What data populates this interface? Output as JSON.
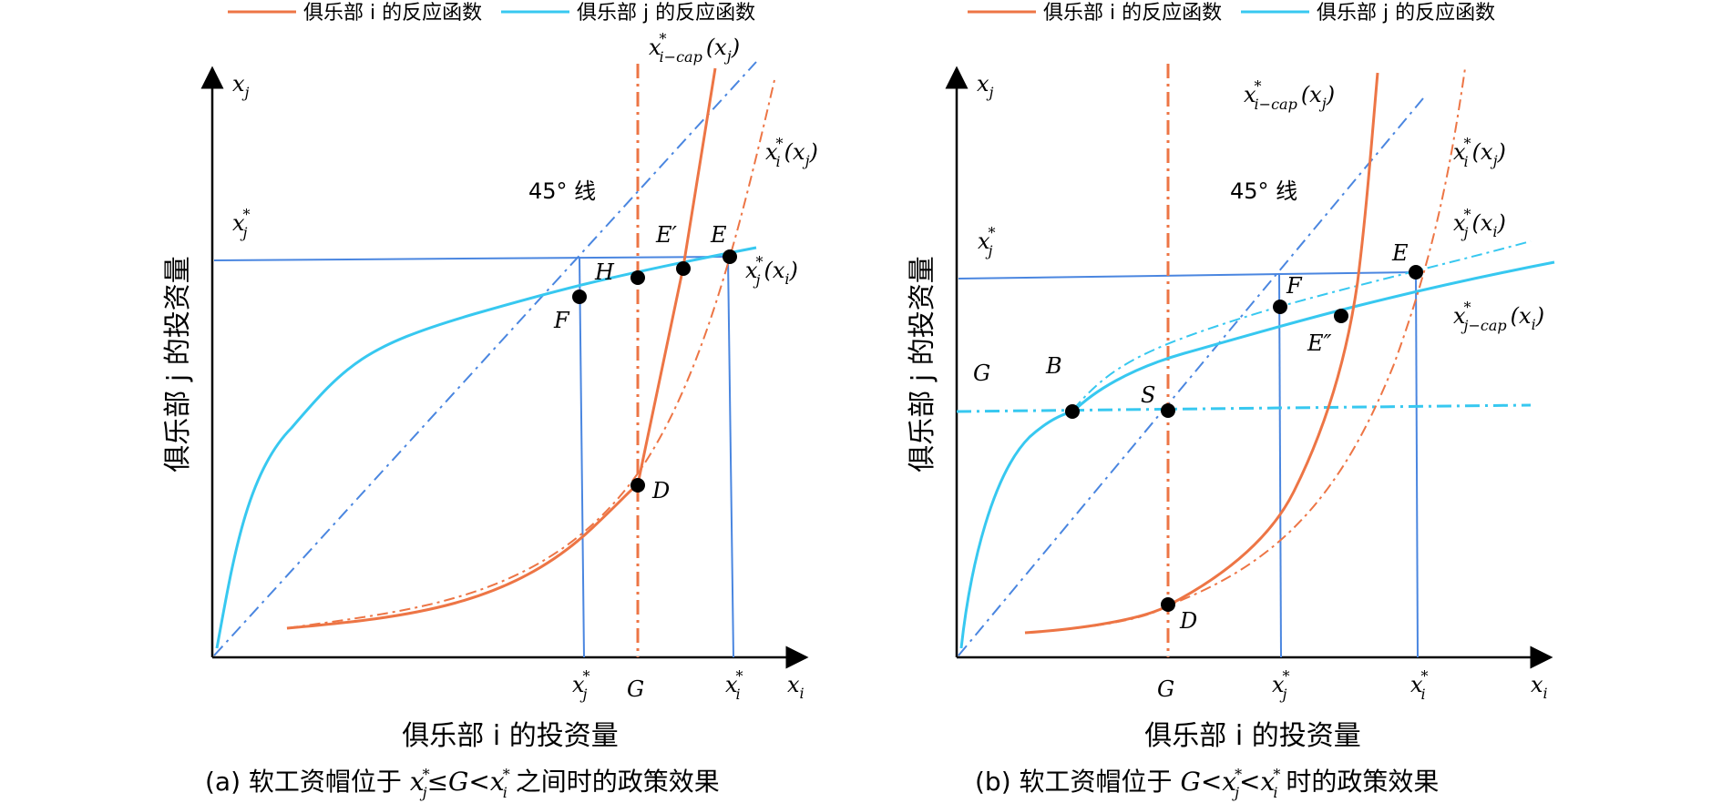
{
  "legend": {
    "club_i": "俱乐部 i 的反应函数",
    "club_j": "俱乐部 j 的反应函数"
  },
  "colors": {
    "club_i": "#ed7545",
    "club_j": "#37c8f0",
    "guide": "#4a86e0",
    "axis": "#000000"
  },
  "panel_a": {
    "x_axis_title": "俱乐部 i 的投资量",
    "y_axis_title": "俱乐部 j 的投资量",
    "axis_x": "x",
    "axis_x_sub": "i",
    "axis_y": "x",
    "axis_y_sub": "j",
    "line45": "45° 线",
    "ystar": "x",
    "ystar_sub": "j",
    "tick_xj": "x",
    "tick_xj_sub": "j",
    "tick_G": "G",
    "tick_xi": "x",
    "tick_xi_sub": "i",
    "curve_icap": "x",
    "curve_icap_sub": "i−cap",
    "curve_icap_arg": "(x",
    "curve_icap_arg_sub": "j",
    "curve_i": "x",
    "curve_i_sub": "i",
    "curve_i_arg": "(x",
    "curve_i_arg_sub": "j",
    "curve_j": "x",
    "curve_j_sub": "j",
    "curve_j_arg": "(x",
    "curve_j_arg_sub": "i",
    "points": {
      "E": "E",
      "Eprime": "E′",
      "H": "H",
      "F": "F",
      "D": "D"
    },
    "caption_prefix": "(a) 软工资帽位于 ",
    "caption_mid1": "≤",
    "caption_G": "G",
    "caption_mid2": "<",
    "caption_suffix": " 之间时的政策效果"
  },
  "panel_b": {
    "x_axis_title": "俱乐部 i 的投资量",
    "y_axis_title": "俱乐部 j 的投资量",
    "axis_x": "x",
    "axis_x_sub": "i",
    "axis_y": "x",
    "axis_y_sub": "j",
    "line45": "45° 线",
    "ystar": "x",
    "ystar_sub": "j",
    "tick_G": "G",
    "tick_xj": "x",
    "tick_xj_sub": "j",
    "tick_xi": "x",
    "tick_xi_sub": "i",
    "curve_icap": "x",
    "curve_icap_sub": "i−cap",
    "curve_icap_arg": "(x",
    "curve_icap_arg_sub": "j",
    "curve_i": "x",
    "curve_i_sub": "i",
    "curve_i_arg": "(x",
    "curve_i_arg_sub": "j",
    "curve_j": "x",
    "curve_j_sub": "j",
    "curve_j_arg": "(x",
    "curve_j_arg_sub": "i",
    "curve_jcap": "x",
    "curve_jcap_sub": "j−cap",
    "curve_jcap_arg": "(x",
    "curve_jcap_arg_sub": "i",
    "G_label": "G",
    "points": {
      "E": "E",
      "F": "F",
      "Edouble": "E″",
      "B": "B",
      "S": "S",
      "D": "D"
    },
    "caption_prefix": "(b) 软工资帽位于 ",
    "caption_G": "G",
    "caption_lt1": "<",
    "caption_lt2": "<",
    "caption_suffix": " 时的政策效果"
  },
  "paren_close": ")"
}
